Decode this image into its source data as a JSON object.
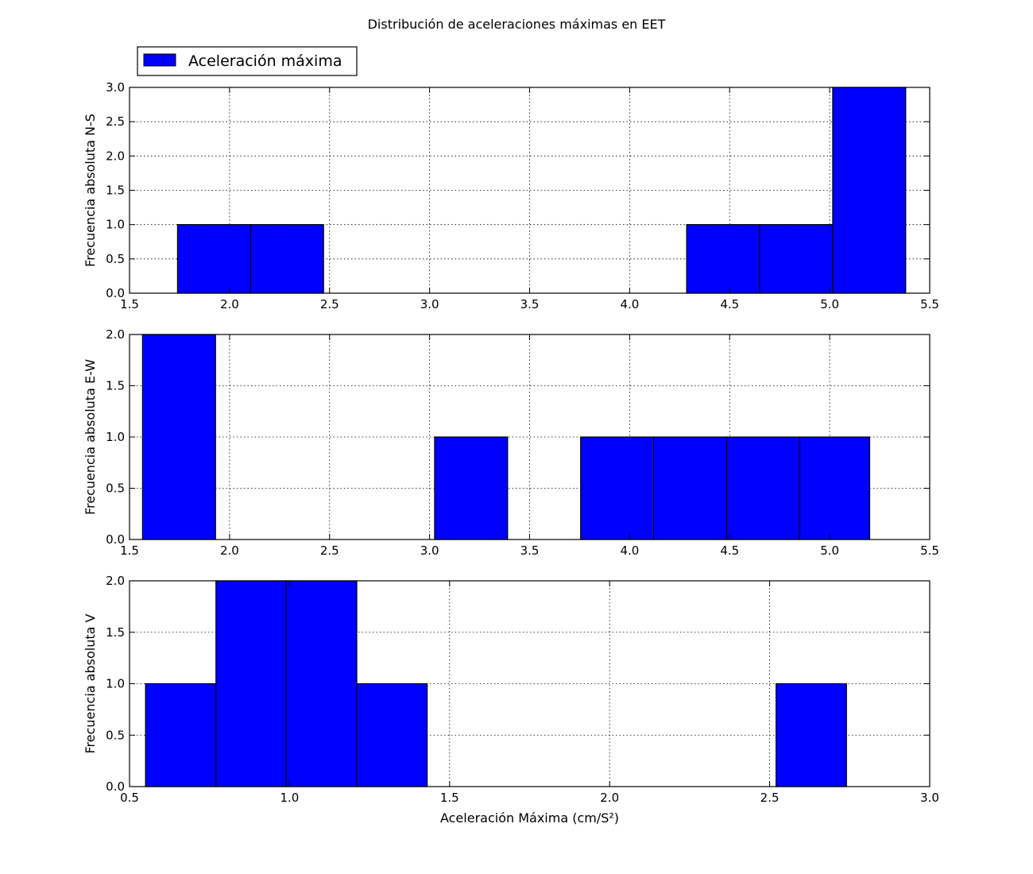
{
  "figure": {
    "title": "Distribución de aceleraciones máximas en EET",
    "legend": {
      "label": "Aceleración máxima",
      "color": "#0000ff",
      "placement": "top-left"
    }
  },
  "chart_data": [
    {
      "type": "bar",
      "histogram": true,
      "series": [
        {
          "name": "Aceleración máxima",
          "color": "#0000ff"
        }
      ],
      "bins": [
        {
          "x0": 1.74,
          "x1": 2.105,
          "count": 1
        },
        {
          "x0": 2.105,
          "x1": 2.47,
          "count": 1
        },
        {
          "x0": 4.285,
          "x1": 4.65,
          "count": 1
        },
        {
          "x0": 4.65,
          "x1": 5.015,
          "count": 1
        },
        {
          "x0": 5.015,
          "x1": 5.38,
          "count": 3
        }
      ],
      "xlabel": "",
      "ylabel": "Frecuencia absoluta N-S",
      "xlim": [
        1.5,
        5.5
      ],
      "ylim": [
        0,
        3.0
      ],
      "xticks": [
        "1.5",
        "2.0",
        "2.5",
        "3.0",
        "3.5",
        "4.0",
        "4.5",
        "5.0",
        "5.5"
      ],
      "yticks": [
        "0.0",
        "0.5",
        "1.0",
        "1.5",
        "2.0",
        "2.5",
        "3.0"
      ],
      "grid": true
    },
    {
      "type": "bar",
      "histogram": true,
      "series": [
        {
          "name": "Aceleración máxima",
          "color": "#0000ff"
        }
      ],
      "bins": [
        {
          "x0": 1.565,
          "x1": 1.93,
          "count": 2
        },
        {
          "x0": 3.025,
          "x1": 3.39,
          "count": 1
        },
        {
          "x0": 3.755,
          "x1": 4.12,
          "count": 1
        },
        {
          "x0": 4.12,
          "x1": 4.485,
          "count": 1
        },
        {
          "x0": 4.485,
          "x1": 4.85,
          "count": 1
        },
        {
          "x0": 4.85,
          "x1": 5.2,
          "count": 1
        }
      ],
      "xlabel": "",
      "ylabel": "Frecuencia absoluta E-W",
      "xlim": [
        1.5,
        5.5
      ],
      "ylim": [
        0,
        2.0
      ],
      "xticks": [
        "1.5",
        "2.0",
        "2.5",
        "3.0",
        "3.5",
        "4.0",
        "4.5",
        "5.0",
        "5.5"
      ],
      "yticks": [
        "0.0",
        "0.5",
        "1.0",
        "1.5",
        "2.0"
      ],
      "grid": true
    },
    {
      "type": "bar",
      "histogram": true,
      "series": [
        {
          "name": "Aceleración máxima",
          "color": "#0000ff"
        }
      ],
      "bins": [
        {
          "x0": 0.55,
          "x1": 0.77,
          "count": 1
        },
        {
          "x0": 0.77,
          "x1": 0.99,
          "count": 2
        },
        {
          "x0": 0.99,
          "x1": 1.21,
          "count": 2
        },
        {
          "x0": 1.21,
          "x1": 1.43,
          "count": 1
        },
        {
          "x0": 2.52,
          "x1": 2.74,
          "count": 1
        }
      ],
      "xlabel": "Aceleración Máxima (cm/S²)",
      "ylabel": "Frecuencia absoluta V",
      "xlim": [
        0.5,
        3.0
      ],
      "ylim": [
        0,
        2.0
      ],
      "xticks": [
        "0.5",
        "1.0",
        "1.5",
        "2.0",
        "2.5",
        "3.0"
      ],
      "yticks": [
        "0.0",
        "0.5",
        "1.0",
        "1.5",
        "2.0"
      ],
      "grid": true
    }
  ]
}
